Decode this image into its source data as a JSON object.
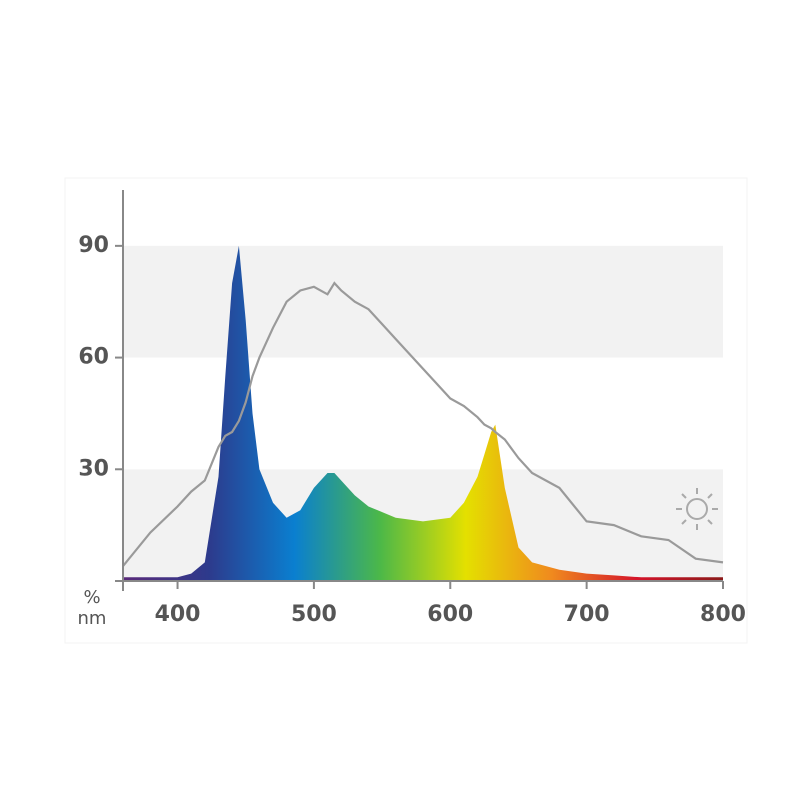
{
  "chart_data": {
    "type": "area",
    "x_unit": "nm",
    "y_unit": "%",
    "x": [
      360,
      380,
      400,
      410,
      420,
      430,
      435,
      440,
      445,
      450,
      455,
      460,
      470,
      480,
      490,
      500,
      510,
      515,
      520,
      530,
      540,
      560,
      580,
      600,
      610,
      620,
      625,
      630,
      633,
      640,
      650,
      660,
      680,
      700,
      720,
      740,
      760,
      780,
      800
    ],
    "series": [
      {
        "color": [
          "#5a2a7a",
          "#2d3a8c",
          "#0a7fd0",
          "#4cb848",
          "#e4e000",
          "#f08a1e",
          "#d4142a",
          "#8b1a1a"
        ],
        "values": [
          1,
          1,
          1,
          2,
          5,
          28,
          55,
          80,
          90,
          70,
          45,
          30,
          21,
          17,
          19,
          25,
          29,
          29,
          27,
          23,
          20,
          17,
          16,
          17,
          21,
          28,
          34,
          40,
          42,
          25,
          9,
          5,
          3,
          2,
          1.5,
          1,
          1,
          1,
          1
        ]
      },
      {
        "color": "#9a9a9a",
        "values": [
          4,
          13,
          20,
          24,
          27,
          36,
          39,
          40,
          43,
          48,
          55,
          60,
          68,
          75,
          78,
          79,
          77,
          80,
          78,
          75,
          73,
          65,
          57,
          49,
          47,
          44,
          42,
          41,
          40,
          38,
          33,
          29,
          25,
          16,
          15,
          12,
          11,
          6,
          5
        ]
      }
    ],
    "xlim": [
      360,
      800
    ],
    "xticks": [
      400,
      500,
      600,
      700,
      800
    ],
    "ylim": [
      0,
      105
    ],
    "yticks": [
      30,
      60,
      90
    ],
    "bands": [
      "#f2f2f2",
      "#ffffff"
    ]
  }
}
